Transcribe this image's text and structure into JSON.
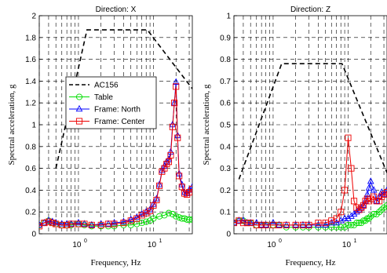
{
  "chart_data": [
    {
      "type": "line",
      "title": "Direction: X",
      "xlabel": "Frequency, Hz",
      "ylabel": "Spectral acceleration, g",
      "xscale": "log",
      "xlim": [
        0.3,
        33
      ],
      "ylim": [
        0,
        2
      ],
      "yticks": [
        0,
        0.2,
        0.4,
        0.6,
        0.8,
        1,
        1.2,
        1.4,
        1.6,
        1.8,
        2
      ],
      "ytick_labels": [
        "0",
        "0.2",
        "0.4",
        "0.6",
        "0.8",
        "1",
        "1.2",
        "1.4",
        "1.6",
        "1.8",
        "2"
      ],
      "xticks": [
        1,
        10
      ],
      "xtick_labels": [
        [
          "10",
          "0"
        ],
        [
          "10",
          "1"
        ]
      ],
      "grid": true,
      "legend_position": "middle-left",
      "series": [
        {
          "name": "AC156",
          "style": "dashed",
          "color": "#000000",
          "x": [
            0.5,
            1.3,
            8.3,
            33
          ],
          "y": [
            0.6,
            1.87,
            1.87,
            1.33
          ]
        },
        {
          "name": "Table",
          "marker": "circle",
          "color": "#00dd00",
          "x": [
            0.3,
            0.35,
            0.4,
            0.45,
            0.5,
            0.6,
            0.7,
            0.8,
            1,
            1.2,
            1.5,
            2,
            2.5,
            3,
            4,
            5,
            6,
            7,
            8,
            9,
            10,
            12,
            14,
            16,
            18,
            20,
            22,
            24,
            26,
            28,
            30,
            33
          ],
          "y": [
            0.08,
            0.1,
            0.12,
            0.1,
            0.09,
            0.08,
            0.08,
            0.08,
            0.09,
            0.08,
            0.07,
            0.07,
            0.07,
            0.07,
            0.08,
            0.08,
            0.09,
            0.1,
            0.11,
            0.12,
            0.14,
            0.16,
            0.17,
            0.19,
            0.18,
            0.16,
            0.15,
            0.14,
            0.14,
            0.13,
            0.13,
            0.13
          ]
        },
        {
          "name": "Frame: North",
          "marker": "triangle",
          "color": "#0000ff",
          "x": [
            0.3,
            0.35,
            0.4,
            0.45,
            0.5,
            0.6,
            0.7,
            0.8,
            1,
            1.2,
            1.5,
            2,
            2.5,
            3,
            4,
            5,
            6,
            7,
            8,
            9,
            10,
            11,
            12,
            13,
            14,
            15,
            16,
            17,
            18,
            19,
            20,
            21,
            22,
            24,
            26,
            28,
            30,
            33
          ],
          "y": [
            0.08,
            0.1,
            0.12,
            0.11,
            0.1,
            0.09,
            0.09,
            0.09,
            0.1,
            0.09,
            0.08,
            0.09,
            0.09,
            0.1,
            0.11,
            0.13,
            0.15,
            0.18,
            0.2,
            0.22,
            0.27,
            0.32,
            0.45,
            0.58,
            0.62,
            0.66,
            0.68,
            0.75,
            1.0,
            1.2,
            1.39,
            0.9,
            0.55,
            0.45,
            0.38,
            0.37,
            0.4,
            0.43
          ]
        },
        {
          "name": "Frame: Center",
          "marker": "square",
          "color": "#ee0000",
          "x": [
            0.3,
            0.35,
            0.4,
            0.45,
            0.5,
            0.6,
            0.7,
            0.8,
            1,
            1.2,
            1.5,
            2,
            2.5,
            3,
            4,
            5,
            6,
            7,
            8,
            9,
            10,
            11,
            12,
            13,
            14,
            15,
            16,
            17,
            18,
            19,
            20,
            21,
            22,
            24,
            26,
            28,
            30,
            33
          ],
          "y": [
            0.07,
            0.1,
            0.11,
            0.1,
            0.09,
            0.08,
            0.08,
            0.09,
            0.09,
            0.09,
            0.08,
            0.08,
            0.09,
            0.09,
            0.1,
            0.12,
            0.14,
            0.17,
            0.19,
            0.21,
            0.26,
            0.31,
            0.44,
            0.57,
            0.6,
            0.64,
            0.66,
            0.72,
            0.98,
            1.2,
            1.35,
            0.88,
            0.53,
            0.43,
            0.37,
            0.36,
            0.38,
            0.41
          ]
        }
      ]
    },
    {
      "type": "line",
      "title": "Direction: Z",
      "xlabel": "Frequency, Hz",
      "ylabel": "Spectral acceleration, g",
      "xscale": "log",
      "xlim": [
        0.3,
        33
      ],
      "ylim": [
        0,
        1
      ],
      "yticks": [
        0,
        0.1,
        0.2,
        0.3,
        0.4,
        0.5,
        0.6,
        0.7,
        0.8,
        0.9,
        1
      ],
      "ytick_labels": [
        "0",
        "0.1",
        "0.2",
        "0.3",
        "0.4",
        "0.5",
        "0.6",
        "0.7",
        "0.8",
        "0.9",
        "1"
      ],
      "xticks": [
        1,
        10
      ],
      "xtick_labels": [
        [
          "10",
          "0"
        ],
        [
          "10",
          "1"
        ]
      ],
      "grid": true,
      "legend_position": "none",
      "series": [
        {
          "name": "AC156",
          "style": "dashed",
          "color": "#000000",
          "x": [
            0.35,
            1.3,
            8.3,
            33
          ],
          "y": [
            0.25,
            0.78,
            0.78,
            0.28
          ]
        },
        {
          "name": "Table",
          "marker": "circle",
          "color": "#00dd00",
          "x": [
            0.3,
            0.35,
            0.4,
            0.45,
            0.5,
            0.6,
            0.7,
            0.8,
            1,
            1.2,
            1.5,
            2,
            2.5,
            3,
            4,
            5,
            6,
            7,
            8,
            9,
            10,
            11,
            12,
            13,
            14,
            15,
            16,
            17,
            18,
            19,
            20,
            22,
            24,
            26,
            28,
            30,
            33
          ],
          "y": [
            0.05,
            0.06,
            0.06,
            0.05,
            0.05,
            0.04,
            0.04,
            0.04,
            0.04,
            0.04,
            0.03,
            0.03,
            0.03,
            0.03,
            0.03,
            0.03,
            0.03,
            0.03,
            0.03,
            0.03,
            0.04,
            0.04,
            0.04,
            0.05,
            0.05,
            0.05,
            0.06,
            0.06,
            0.07,
            0.07,
            0.08,
            0.09,
            0.09,
            0.1,
            0.11,
            0.12,
            0.13
          ]
        },
        {
          "name": "Frame: North",
          "marker": "triangle",
          "color": "#0000ff",
          "x": [
            0.3,
            0.35,
            0.4,
            0.45,
            0.5,
            0.6,
            0.7,
            0.8,
            1,
            1.2,
            1.5,
            2,
            2.5,
            3,
            4,
            5,
            6,
            7,
            8,
            9,
            10,
            11,
            12,
            13,
            14,
            15,
            16,
            17,
            18,
            19,
            20,
            22,
            24,
            26,
            28,
            30,
            33
          ],
          "y": [
            0.05,
            0.06,
            0.06,
            0.05,
            0.05,
            0.05,
            0.04,
            0.04,
            0.05,
            0.04,
            0.04,
            0.04,
            0.04,
            0.04,
            0.04,
            0.04,
            0.05,
            0.05,
            0.06,
            0.07,
            0.07,
            0.08,
            0.09,
            0.1,
            0.11,
            0.12,
            0.13,
            0.15,
            0.18,
            0.21,
            0.24,
            0.2,
            0.15,
            0.17,
            0.19,
            0.18,
            0.2
          ]
        },
        {
          "name": "Frame: Center",
          "marker": "square",
          "color": "#ee0000",
          "x": [
            0.3,
            0.35,
            0.4,
            0.45,
            0.5,
            0.6,
            0.7,
            0.8,
            1,
            1.2,
            1.5,
            2,
            2.5,
            3,
            4,
            5,
            6,
            7,
            8,
            9,
            10,
            11,
            12,
            13,
            14,
            15,
            16,
            17,
            18,
            19,
            20,
            22,
            24,
            26,
            28,
            30,
            33
          ],
          "y": [
            0.05,
            0.06,
            0.05,
            0.05,
            0.05,
            0.04,
            0.04,
            0.04,
            0.04,
            0.04,
            0.04,
            0.04,
            0.04,
            0.04,
            0.05,
            0.05,
            0.06,
            0.07,
            0.1,
            0.2,
            0.44,
            0.3,
            0.15,
            0.12,
            0.11,
            0.12,
            0.13,
            0.15,
            0.16,
            0.15,
            0.16,
            0.17,
            0.15,
            0.15,
            0.17,
            0.18,
            0.19
          ]
        }
      ]
    }
  ]
}
